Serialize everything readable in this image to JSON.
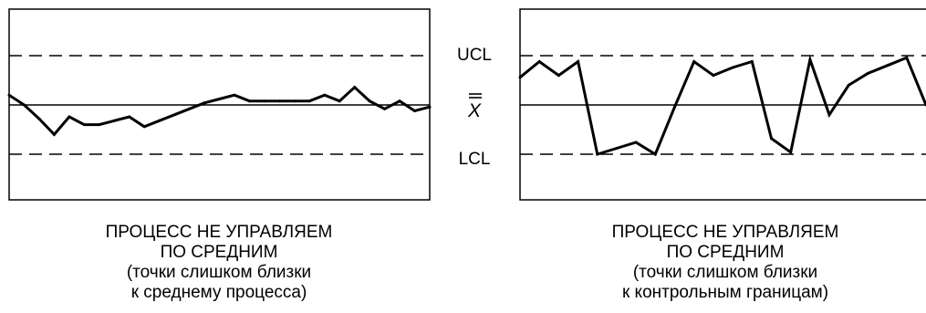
{
  "chart_data": [
    {
      "type": "line",
      "ylim": [
        0,
        100
      ],
      "center_line": 50,
      "ucl": 75,
      "lcl": 25,
      "x": [
        0,
        1,
        2,
        3,
        4,
        5,
        6,
        7,
        8,
        9,
        10,
        11,
        12,
        13,
        14,
        15,
        16,
        17,
        18,
        19,
        20,
        21,
        22,
        23,
        24,
        25,
        26,
        27,
        28
      ],
      "values": [
        55,
        50,
        43,
        35,
        44,
        40,
        40,
        42,
        44,
        39,
        42,
        45,
        48,
        51,
        53,
        55,
        52,
        52,
        52,
        52,
        52,
        55,
        52,
        59,
        52,
        48,
        52,
        47,
        49
      ],
      "caption_lines": [
        "ПРОЦЕСС НЕ УПРАВЛЯЕМ",
        "ПО СРЕДНИМ",
        "(точки слишком близки",
        "к среднему процесса)"
      ]
    },
    {
      "type": "line",
      "ylim": [
        0,
        100
      ],
      "center_line": 50,
      "ucl": 75,
      "lcl": 25,
      "x": [
        0,
        1,
        2,
        3,
        4,
        5,
        6,
        7,
        8,
        9,
        10,
        11,
        12,
        13,
        14,
        15,
        16,
        17,
        18,
        19,
        20,
        21
      ],
      "values": [
        64,
        72,
        65,
        72,
        25,
        28,
        31,
        25,
        49,
        72,
        65,
        69,
        72,
        33,
        26,
        73,
        45,
        60,
        66,
        70,
        74,
        50
      ],
      "caption_lines": [
        "ПРОЦЕСС НЕ УПРАВЛЯЕМ",
        "ПО СРЕДНИМ",
        "(точки слишком близки",
        "к контрольным границам)"
      ]
    }
  ],
  "limit_labels": {
    "ucl": "UCL",
    "center": "X",
    "lcl": "LCL"
  }
}
